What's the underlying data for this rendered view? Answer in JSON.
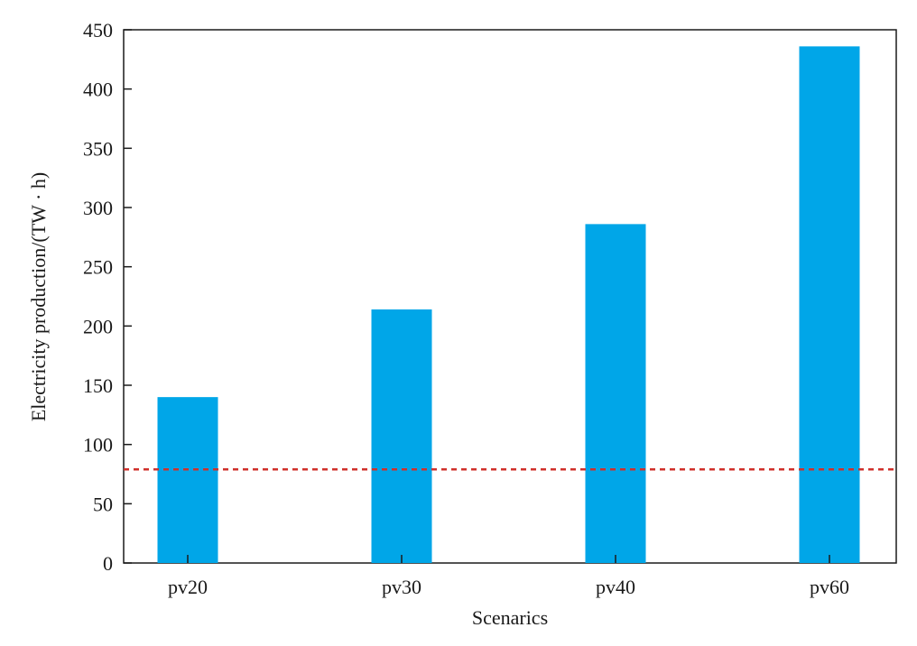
{
  "chart_data": {
    "type": "bar",
    "categories": [
      "pv20",
      "pv30",
      "pv40",
      "pv60"
    ],
    "values": [
      140,
      214,
      286,
      436
    ],
    "title": "",
    "xlabel": "Scenarics",
    "ylabel": "Electricity production/(TW · h)",
    "ylim": [
      0,
      450
    ],
    "yticks": [
      0,
      50,
      100,
      150,
      200,
      250,
      300,
      350,
      400,
      450
    ],
    "reference_line": {
      "value": 79,
      "style": "dashed",
      "color": "#d0302b"
    },
    "bar_color": "#00a6e8",
    "grid": false,
    "legend": "none"
  }
}
